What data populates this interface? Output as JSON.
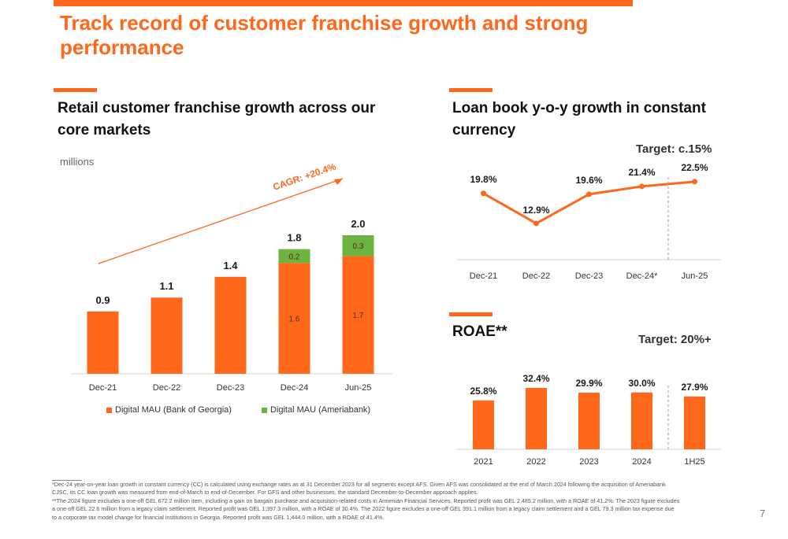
{
  "slide": {
    "title": "Track record of customer franchise growth and strong performance",
    "page_number": "7",
    "footnotes": [
      "*Dec-24 year-on-year loan growth in constant currency (CC) is calculated using exchange rates as at 31 December 2023 for all segments except AFS. Given AFS was consolidated at the end of March 2024 following the acquisition of Ameriabank",
      "CJSC, its CC loan growth was measured from end-of-March to end-of-December. For GFS and other businesses, the standard December-to-December approach applies.",
      "**The 2024 figure excludes a one-off GEL 672.2 million item, including a gain on bargain purchase and acquisition-related costs in Armenian Financial Services. Reported profit was GEL 2,485.2 million, with a ROAE of 41.2%. The 2023 figure excludes",
      "a one-off GEL 22.6 million from a legacy claim settlement. Reported profit was GEL 1,397.3 million, with a ROAE of 30.4%. The 2022 figure excludes a one-off GEL 391.1 million from a legacy claim settlement and a GEL 79.3 million tax expense due",
      "to a corporate tax model change for financial institutions in Georgia. Reported profit was GEL 1,444.0 million, with a ROAE of 41.4%."
    ]
  },
  "colors": {
    "orange": "#ff671b",
    "green": "#6cb33f",
    "text": "#1a1a1a",
    "axis": "#d0d0d0"
  },
  "panels": {
    "franchise": {
      "heading": "Retail customer franchise growth across our core markets",
      "units": "millions",
      "cagr_label": "CAGR: +20.4%"
    },
    "loan": {
      "heading": "Loan book y-o-y growth in constant currency",
      "target": "Target: c.15%"
    },
    "roae": {
      "heading": "ROAE**",
      "target": "Target: 20%+"
    }
  },
  "chart_data": [
    {
      "id": "franchise",
      "type": "bar",
      "stacked": true,
      "categories": [
        "Dec-21",
        "Dec-22",
        "Dec-23",
        "Dec-24",
        "Jun-25"
      ],
      "series": [
        {
          "name": "Digital MAU (Bank of Georgia)",
          "color": "#ff671b",
          "values": [
            0.9,
            1.1,
            1.4,
            1.6,
            1.7
          ],
          "segment_labels": [
            "",
            "",
            "",
            "1.6",
            "1.7"
          ]
        },
        {
          "name": "Digital MAU (Ameriabank)",
          "color": "#6cb33f",
          "values": [
            0,
            0,
            0,
            0.2,
            0.3
          ],
          "segment_labels": [
            "",
            "",
            "",
            "0.2",
            "0.3"
          ]
        }
      ],
      "total_labels": [
        "0.9",
        "1.1",
        "1.4",
        "1.8",
        "2.0"
      ],
      "ylim": [
        0,
        2.0
      ],
      "legend_position": "bottom",
      "annotation": "CAGR: +20.4%"
    },
    {
      "id": "loan",
      "type": "line",
      "categories": [
        "Dec-21",
        "Dec-22",
        "Dec-23",
        "Dec-24*",
        "Jun-25"
      ],
      "values": [
        19.8,
        12.9,
        19.6,
        21.4,
        22.5
      ],
      "data_labels": [
        "19.8%",
        "12.9%",
        "19.6%",
        "21.4%",
        "22.5%"
      ],
      "ylim": [
        10,
        25
      ],
      "divider_after_index": 3
    },
    {
      "id": "roae",
      "type": "bar",
      "categories": [
        "2021",
        "2022",
        "2023",
        "2024",
        "1H25"
      ],
      "values": [
        25.8,
        32.4,
        29.9,
        30.0,
        27.9
      ],
      "data_labels": [
        "25.8%",
        "32.4%",
        "29.9%",
        "30.0%",
        "27.9%"
      ],
      "ylim": [
        0,
        35
      ],
      "divider_after_index": 3
    }
  ]
}
